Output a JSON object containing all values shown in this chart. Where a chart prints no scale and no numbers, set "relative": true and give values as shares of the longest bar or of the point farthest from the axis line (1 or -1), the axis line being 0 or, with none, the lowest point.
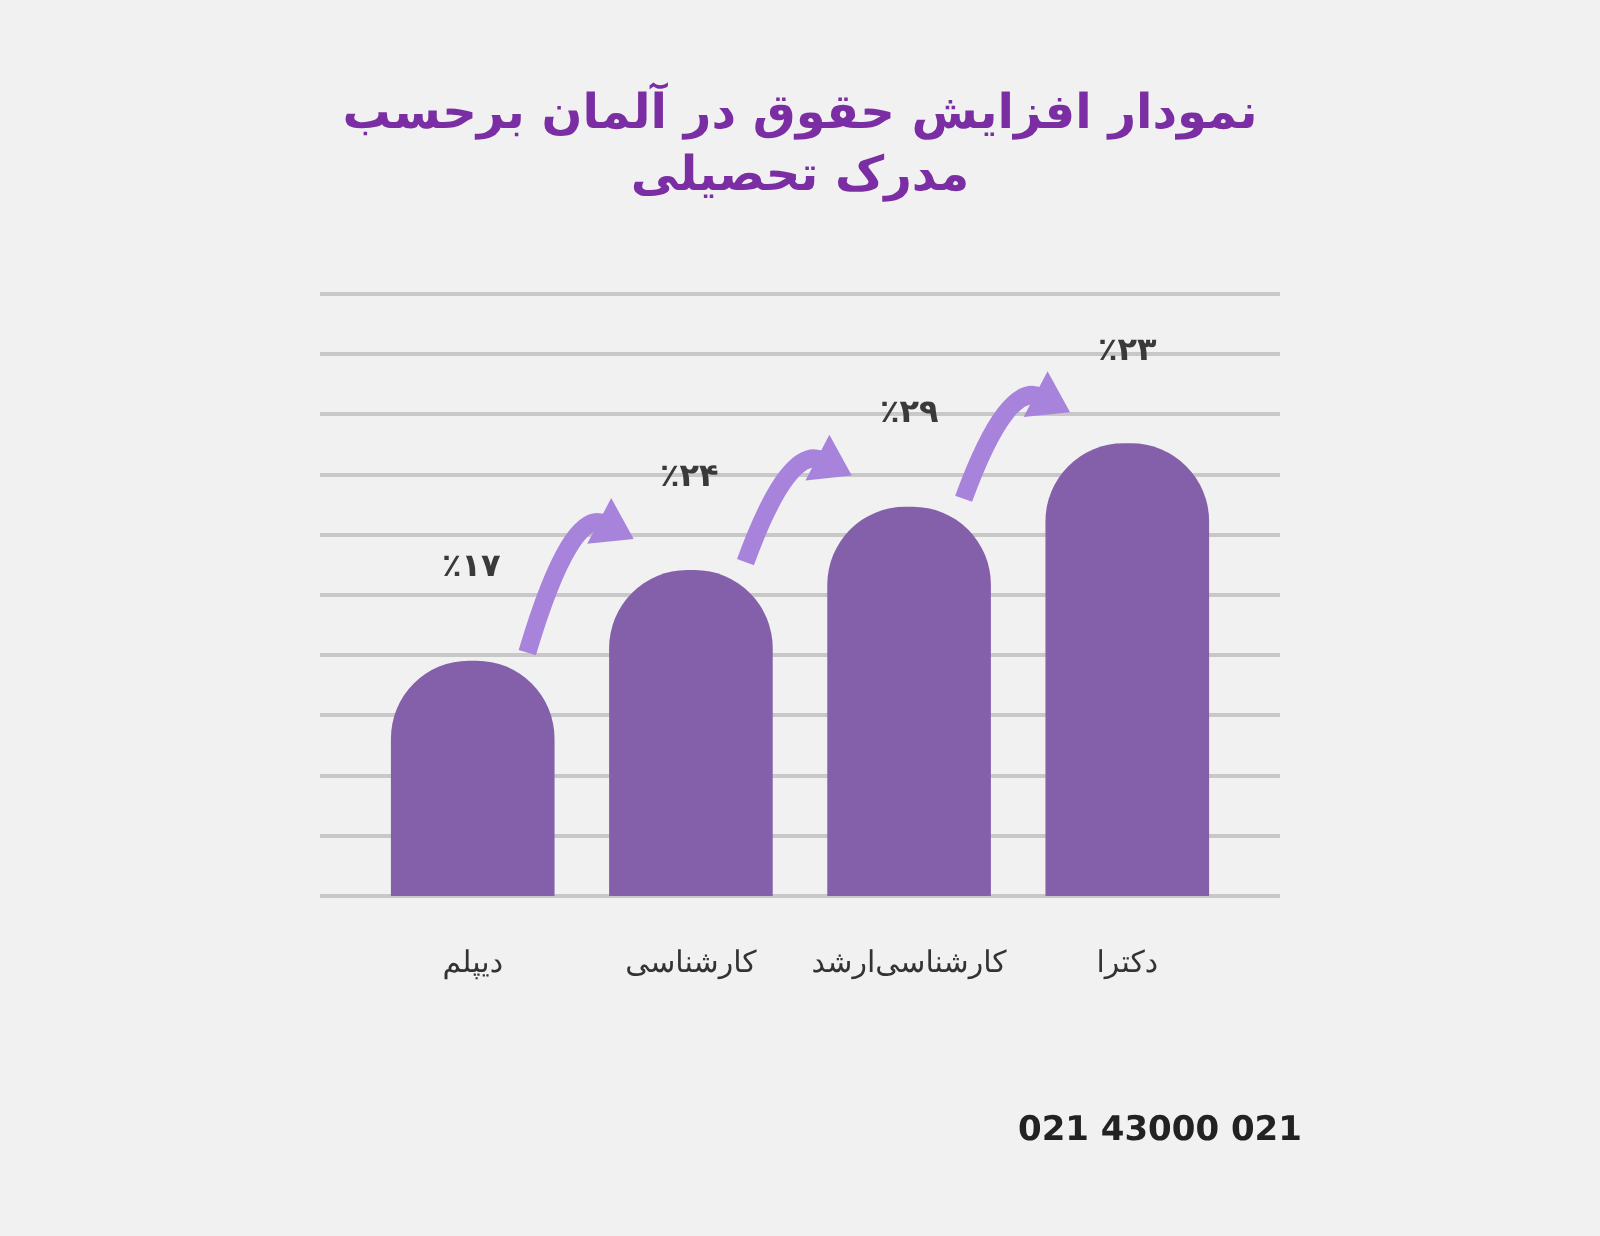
{
  "chart_data": {
    "type": "bar",
    "title": "نمودار افزایش حقوق در آلمان برحسب\nمدرک تحصیلی",
    "categories": [
      "دیپلم",
      "کارشناسی",
      "کارشناسی‌ارشد",
      "دکترا"
    ],
    "values": [
      0.52,
      0.72,
      0.86,
      1
    ],
    "relative": true,
    "color": "#8460ab",
    "grid": "y",
    "annotations": [
      {
        "text": "٪۱۷",
        "x": "دیپلم",
        "y": 0.52
      },
      {
        "text": "٪۲۴",
        "x": "کارشناسی",
        "y": 0.72
      },
      {
        "text": "٪۲۹",
        "x": "کارشناسی‌ارشد",
        "y": 0.86
      },
      {
        "text": "٪۲۳",
        "x": "دکترا",
        "y": 1
      },
      "021 43000 021"
    ]
  }
}
